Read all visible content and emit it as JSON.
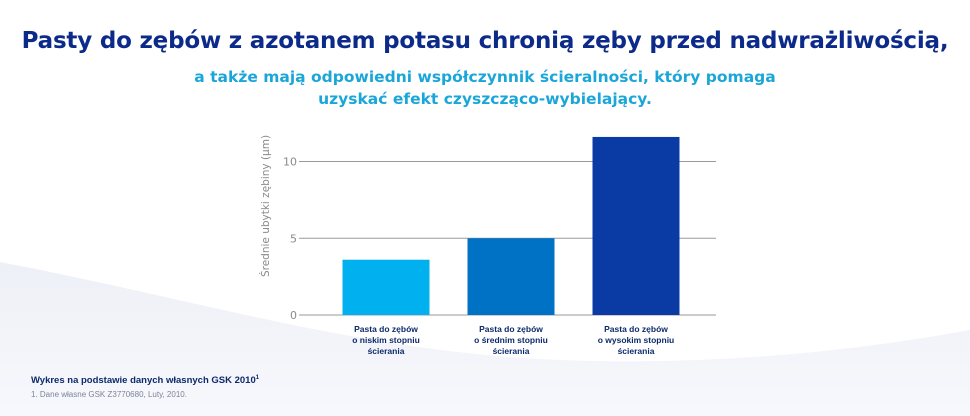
{
  "header": {
    "title": "Pasty do zębów z azotanem potasu chronią zęby przed nadwrażliwością,",
    "subtitle_line1": "a także mają odpowiedni współczynnik ścieralności, który pomaga",
    "subtitle_line2": "uzyskać efekt czyszcząco-wybielający."
  },
  "chart_data": {
    "type": "bar",
    "ylabel": "Średnie ubytki zębiny (µm)",
    "ylim": [
      0,
      12
    ],
    "yticks": [
      0,
      5,
      10
    ],
    "grid": true,
    "categories": [
      [
        "Pasta do zębów",
        "o niskim stopniu",
        "ścierania"
      ],
      [
        "Pasta do zębów",
        "o średnim stopniu",
        "ścierania"
      ],
      [
        "Pasta do zębów",
        "o wysokim stopniu",
        "ścierania"
      ]
    ],
    "values": [
      3.6,
      5.0,
      11.6
    ],
    "colors": [
      "#00b0ef",
      "#0072c6",
      "#0a3ba4"
    ]
  },
  "footnote": {
    "title": "Wykres na podstawie danych własnych GSK 2010",
    "title_sup": "1",
    "reference": "1. Dane własne GSK Z3770680, Luty, 2010."
  },
  "colors": {
    "headline": "#0c2a8a",
    "subline": "#1ba6d9",
    "grid": "#9a9a9a",
    "axis_text": "#8a8a8a",
    "category_text": "#0c2a6a"
  }
}
